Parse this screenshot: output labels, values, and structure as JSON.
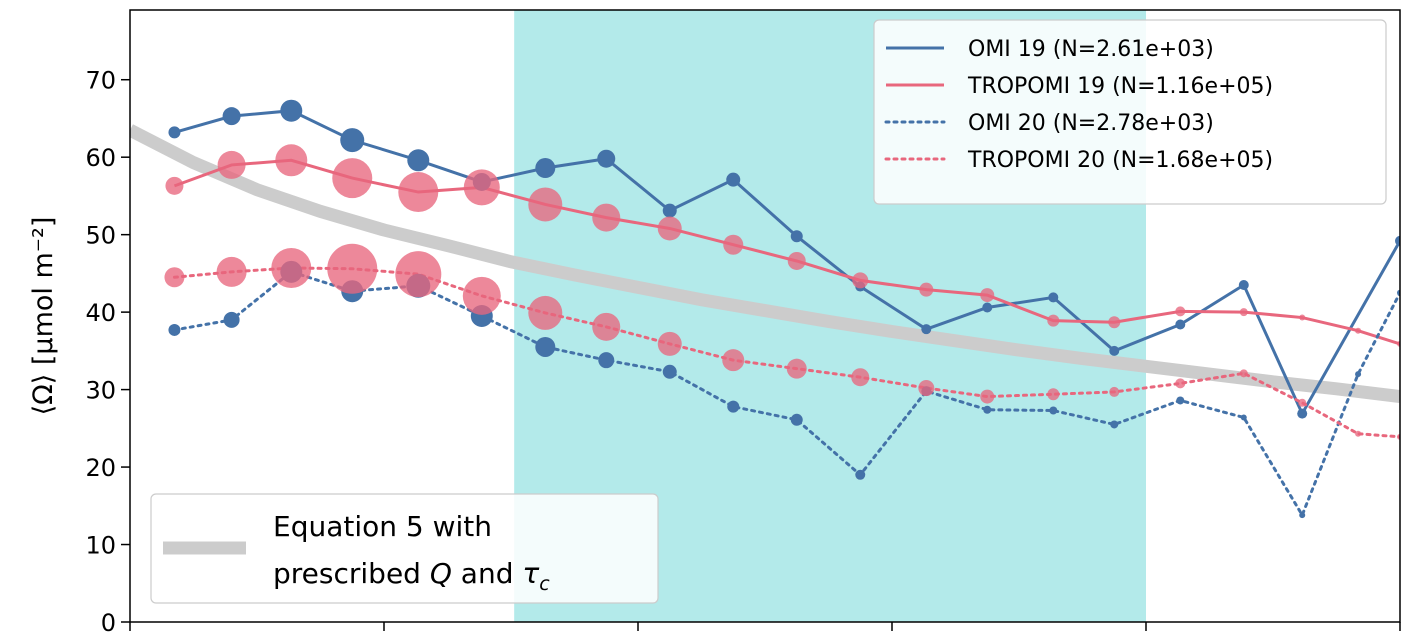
{
  "chart_data": {
    "type": "line",
    "ylabel": "⟨Ω⟩ [μmol m⁻²]",
    "ylim": [
      0,
      79
    ],
    "xlim": [
      0,
      1
    ],
    "y_ticks": [
      0,
      10,
      20,
      30,
      40,
      50,
      60,
      70
    ],
    "x_tick_positions": [
      0,
      0.2,
      0.4,
      0.6,
      0.8,
      1.0
    ],
    "x_tick_labels_visible": false,
    "shaded_region": {
      "x": [
        0.3025,
        0.8
      ],
      "color": "#b3eaea"
    },
    "legend": {
      "placement": "top-right"
    },
    "series": [
      {
        "name": "OMI 19 (N=2.61e+03)",
        "style": "solid",
        "color": "#4472a8",
        "x": [
          0.035,
          0.08,
          0.127,
          0.175,
          0.227,
          0.277,
          0.327,
          0.375,
          0.425,
          0.475,
          0.525,
          0.575,
          0.627,
          0.675,
          0.727,
          0.775,
          0.827,
          0.877,
          0.923,
          1.0
        ],
        "y": [
          63.2,
          65.3,
          66.0,
          62.2,
          59.6,
          56.8,
          58.6,
          59.8,
          53.1,
          57.1,
          49.8,
          43.3,
          37.8,
          40.6,
          41.9,
          35.0,
          38.4,
          43.5,
          26.9,
          49.2
        ],
        "marker_size": [
          6,
          9,
          11,
          12,
          11,
          9,
          10,
          9,
          7,
          7,
          6,
          5,
          5,
          5,
          5,
          5,
          5,
          5,
          5,
          5
        ]
      },
      {
        "name": "TROPOMI 19 (N=1.16e+05)",
        "style": "solid",
        "color": "#e8677d",
        "x": [
          0.035,
          0.08,
          0.127,
          0.175,
          0.227,
          0.277,
          0.327,
          0.375,
          0.425,
          0.475,
          0.525,
          0.575,
          0.627,
          0.675,
          0.727,
          0.775,
          0.827,
          0.877,
          0.923,
          0.967,
          1.0
        ],
        "y": [
          56.3,
          59.0,
          59.6,
          57.3,
          55.5,
          56.1,
          53.9,
          52.2,
          50.8,
          48.7,
          46.6,
          44.1,
          42.9,
          42.2,
          38.9,
          38.7,
          40.1,
          40.0,
          39.3,
          37.6,
          35.9
        ],
        "marker_size": [
          9,
          14,
          16,
          20,
          20,
          18,
          17,
          14,
          12,
          10,
          9,
          8,
          7,
          7,
          6,
          6,
          5,
          4,
          3,
          3,
          3
        ]
      },
      {
        "name": "OMI 20 (N=2.78e+03)",
        "style": "dotted",
        "color": "#4472a8",
        "x": [
          0.035,
          0.08,
          0.127,
          0.175,
          0.227,
          0.277,
          0.327,
          0.375,
          0.425,
          0.475,
          0.525,
          0.575,
          0.627,
          0.675,
          0.727,
          0.775,
          0.827,
          0.877,
          0.923,
          0.967,
          1.0
        ],
        "y": [
          37.7,
          39.0,
          45.2,
          42.7,
          43.4,
          39.5,
          35.5,
          33.8,
          32.3,
          27.8,
          26.1,
          19.0,
          29.8,
          27.4,
          27.3,
          25.5,
          28.6,
          26.4,
          13.8,
          32.0,
          42.5
        ],
        "marker_size": [
          6,
          8,
          11,
          11,
          12,
          11,
          10,
          8,
          7,
          6,
          6,
          5,
          5,
          4,
          4,
          4,
          4,
          3,
          3,
          3,
          3
        ]
      },
      {
        "name": "TROPOMI 20 (N=1.68e+05)",
        "style": "dotted",
        "color": "#e8677d",
        "x": [
          0.035,
          0.08,
          0.127,
          0.175,
          0.227,
          0.277,
          0.327,
          0.375,
          0.425,
          0.475,
          0.525,
          0.575,
          0.627,
          0.675,
          0.727,
          0.775,
          0.827,
          0.877,
          0.923,
          0.967,
          1.0
        ],
        "y": [
          44.5,
          45.2,
          45.7,
          45.6,
          44.9,
          42.1,
          39.9,
          38.1,
          35.9,
          33.8,
          32.7,
          31.6,
          30.2,
          29.1,
          29.4,
          29.7,
          30.8,
          32.1,
          28.3,
          24.3,
          23.9
        ],
        "marker_size": [
          10,
          15,
          20,
          25,
          23,
          19,
          17,
          14,
          12,
          11,
          10,
          9,
          8,
          7,
          6,
          5,
          5,
          4,
          4,
          3,
          3
        ]
      }
    ],
    "reference_curve": {
      "label_lines": [
        "Equation 5 with",
        "prescribed $Q$ and $\\tau_c$"
      ],
      "color": "#cccccc",
      "x": [
        0.0,
        0.05,
        0.1,
        0.15,
        0.2,
        0.25,
        0.3,
        0.35,
        0.4,
        0.45,
        0.5,
        0.55,
        0.6,
        0.65,
        0.7,
        0.75,
        0.8,
        0.85,
        0.9,
        0.95,
        1.0
      ],
      "y": [
        63.5,
        59.3,
        55.8,
        53.0,
        50.6,
        48.6,
        46.5,
        44.8,
        43.2,
        41.6,
        40.2,
        38.8,
        37.5,
        36.3,
        35.1,
        34.0,
        33.0,
        32.0,
        31.0,
        30.1,
        29.1
      ]
    }
  }
}
